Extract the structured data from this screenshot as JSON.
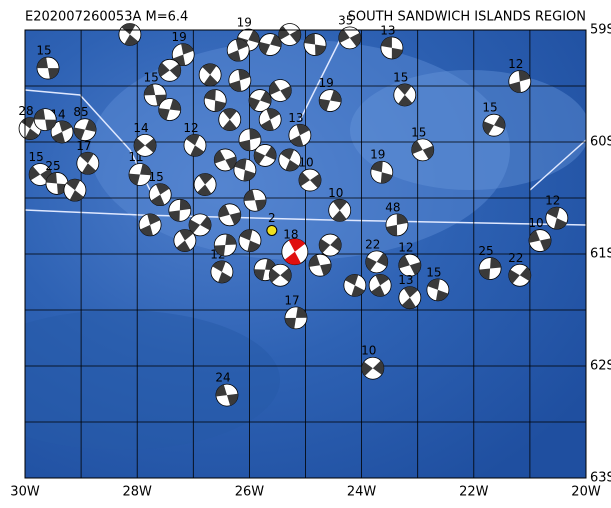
{
  "title": "E202007260053A  M=6.4",
  "region": "SOUTH SANDWICH ISLANDS REGION",
  "lonlim": [
    -30,
    -20
  ],
  "latlim": [
    -59,
    -63
  ],
  "lon_ticks": [
    {
      "value": -30,
      "label": "30W"
    },
    {
      "value": -28,
      "label": "28W"
    },
    {
      "value": -26,
      "label": "26W"
    },
    {
      "value": -24,
      "label": "24W"
    },
    {
      "value": -22,
      "label": "22W"
    },
    {
      "value": -20,
      "label": "20W"
    }
  ],
  "lon_gridlines": [
    -29,
    -27,
    -25,
    -23,
    -21
  ],
  "lat_ticks": [
    {
      "value": -59,
      "label": "59S"
    },
    {
      "value": -60,
      "label": "60S"
    },
    {
      "value": -61,
      "label": "61S"
    },
    {
      "value": -62,
      "label": "62S"
    },
    {
      "value": -63,
      "label": "63S"
    }
  ],
  "lat_gridlines": [
    -59.5,
    -60.5,
    -61.5,
    -62.5
  ],
  "mechanism_color": "#3a3a3a",
  "main_color": "#e01010",
  "small_color": "#f0e020",
  "events": [
    {
      "label": "15",
      "lon": -29.59,
      "lat": -59.34
    },
    {
      "label": "28",
      "lon": -29.91,
      "lat": -59.88
    },
    {
      "label": "14",
      "lon": -29.34,
      "lat": -59.91
    },
    {
      "label": "85",
      "lon": -28.93,
      "lat": -59.89
    },
    {
      "label": "15",
      "lon": -29.73,
      "lat": -60.29
    },
    {
      "label": "25",
      "lon": -29.43,
      "lat": -60.37
    },
    {
      "label": "17",
      "lon": -28.88,
      "lat": -60.19
    },
    {
      "label": "19",
      "lon": -27.18,
      "lat": -59.22
    },
    {
      "label": "19",
      "lon": -26.02,
      "lat": -59.09
    },
    {
      "label": "35",
      "lon": -24.21,
      "lat": -59.07
    },
    {
      "label": "13",
      "lon": -23.46,
      "lat": -59.16
    },
    {
      "label": "15",
      "lon": -23.23,
      "lat": -59.58
    },
    {
      "label": "12",
      "lon": -21.18,
      "lat": -59.46
    },
    {
      "label": "15",
      "lon": -21.64,
      "lat": -59.85
    },
    {
      "label": "15",
      "lon": -22.91,
      "lat": -60.07
    },
    {
      "label": "19",
      "lon": -23.64,
      "lat": -60.27
    },
    {
      "label": "10",
      "lon": -24.39,
      "lat": -60.61
    },
    {
      "label": "48",
      "lon": -23.37,
      "lat": -60.74
    },
    {
      "label": "22",
      "lon": -23.73,
      "lat": -61.07
    },
    {
      "label": "12",
      "lon": -23.14,
      "lat": -61.1
    },
    {
      "label": "15",
      "lon": -22.64,
      "lat": -61.32
    },
    {
      "label": "13",
      "lon": -23.14,
      "lat": -61.39
    },
    {
      "label": "25",
      "lon": -21.71,
      "lat": -61.13
    },
    {
      "label": "22",
      "lon": -21.18,
      "lat": -61.19
    },
    {
      "label": "10",
      "lon": -20.82,
      "lat": -60.88
    },
    {
      "label": "12",
      "lon": -20.52,
      "lat": -60.68
    },
    {
      "label": "18",
      "lon": -25.19,
      "lat": -60.98,
      "main": true
    },
    {
      "label": "17",
      "lon": -25.17,
      "lat": -61.57
    },
    {
      "label": "10",
      "lon": -23.8,
      "lat": -62.02
    },
    {
      "label": "24",
      "lon": -26.4,
      "lat": -62.26
    },
    {
      "label": "12",
      "lon": -26.49,
      "lat": -61.16
    },
    {
      "label": "15",
      "lon": -27.59,
      "lat": -60.47
    },
    {
      "label": "11",
      "lon": -27.95,
      "lat": -60.29
    },
    {
      "label": "14",
      "lon": -27.86,
      "lat": -60.03
    },
    {
      "label": "15",
      "lon": -27.68,
      "lat": -59.58
    },
    {
      "label": "12",
      "lon": -26.97,
      "lat": -60.03
    },
    {
      "label": "13",
      "lon": -25.1,
      "lat": -59.94
    },
    {
      "label": "19",
      "lon": -24.56,
      "lat": -59.63
    },
    {
      "label": "10",
      "lon": -24.92,
      "lat": -60.34
    },
    {
      "label": "2",
      "lon": -25.6,
      "lat": -60.79,
      "small": true
    },
    {
      "lon": -28.13,
      "lat": -59.04
    },
    {
      "lon": -26.2,
      "lat": -59.18
    },
    {
      "lon": -25.63,
      "lat": -59.13
    },
    {
      "lon": -25.28,
      "lat": -59.04
    },
    {
      "lon": -24.83,
      "lat": -59.13
    },
    {
      "lon": -26.7,
      "lat": -59.4
    },
    {
      "lon": -26.17,
      "lat": -59.45
    },
    {
      "lon": -25.81,
      "lat": -59.63
    },
    {
      "lon": -25.45,
      "lat": -59.54
    },
    {
      "lon": -26.61,
      "lat": -59.63
    },
    {
      "lon": -26.35,
      "lat": -59.8
    },
    {
      "lon": -25.99,
      "lat": -59.98
    },
    {
      "lon": -25.72,
      "lat": -60.12
    },
    {
      "lon": -26.43,
      "lat": -60.16
    },
    {
      "lon": -26.08,
      "lat": -60.25
    },
    {
      "lon": -26.79,
      "lat": -60.38
    },
    {
      "lon": -27.24,
      "lat": -60.61
    },
    {
      "lon": -26.88,
      "lat": -60.74
    },
    {
      "lon": -26.35,
      "lat": -60.65
    },
    {
      "lon": -25.99,
      "lat": -60.88
    },
    {
      "lon": -27.15,
      "lat": -60.88
    },
    {
      "lon": -26.43,
      "lat": -60.92
    },
    {
      "lon": -24.56,
      "lat": -60.92
    },
    {
      "lon": -24.74,
      "lat": -61.1
    },
    {
      "lon": -24.12,
      "lat": -61.28
    },
    {
      "lon": -23.67,
      "lat": -61.28
    },
    {
      "lon": -25.72,
      "lat": -61.14
    },
    {
      "lon": -25.45,
      "lat": -61.19
    },
    {
      "lon": -25.9,
      "lat": -60.52
    },
    {
      "lon": -25.28,
      "lat": -60.16
    },
    {
      "lon": -25.63,
      "lat": -59.8
    },
    {
      "lon": -27.42,
      "lat": -59.71
    },
    {
      "lon": -27.42,
      "lat": -59.36
    },
    {
      "lon": -29.64,
      "lat": -59.8
    },
    {
      "lon": -29.11,
      "lat": -60.43
    },
    {
      "lon": -27.77,
      "lat": -60.74
    }
  ]
}
